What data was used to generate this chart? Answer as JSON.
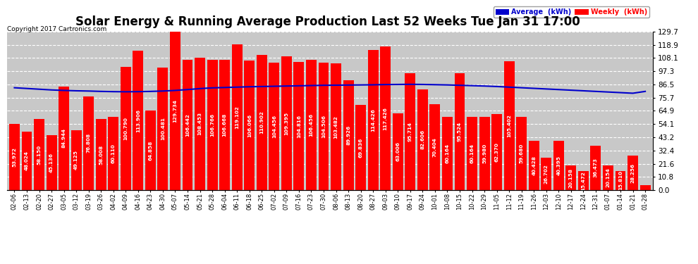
{
  "title": "Solar Energy & Running Average Production Last 52 Weeks Tue Jan 31 17:00",
  "copyright": "Copyright 2017 Cartronics.com",
  "bar_color": "#ff0000",
  "avg_line_color": "#0000cc",
  "background_color": "#ffffff",
  "plot_background": "#c8c8c8",
  "grid_color": "#ffffff",
  "legend_avg_bg": "#0000cc",
  "legend_weekly_bg": "#ff0000",
  "yticks": [
    0.0,
    10.8,
    21.6,
    32.4,
    43.2,
    54.1,
    64.9,
    75.7,
    86.5,
    97.3,
    108.1,
    118.9,
    129.7
  ],
  "xlabels": [
    "02-06",
    "02-13",
    "02-20",
    "02-27",
    "03-05",
    "03-12",
    "03-19",
    "03-26",
    "04-02",
    "04-09",
    "04-16",
    "04-23",
    "04-30",
    "05-07",
    "05-14",
    "05-21",
    "05-28",
    "06-04",
    "06-11",
    "06-18",
    "06-25",
    "07-02",
    "07-09",
    "07-16",
    "07-23",
    "07-30",
    "08-06",
    "08-13",
    "08-20",
    "08-27",
    "09-03",
    "09-10",
    "09-17",
    "09-24",
    "10-01",
    "10-08",
    "10-15",
    "10-22",
    "10-29",
    "11-05",
    "11-12",
    "11-19",
    "11-26",
    "12-03",
    "12-10",
    "12-17",
    "12-24",
    "12-31",
    "01-07",
    "01-14",
    "01-21",
    "01-28"
  ],
  "weekly_values": [
    53.972,
    48.024,
    58.15,
    45.136,
    84.944,
    49.125,
    76.808,
    58.008,
    60.11,
    100.79,
    113.906,
    64.858,
    100.481,
    129.734,
    106.442,
    108.453,
    106.766,
    106.668,
    119.102,
    106.066,
    110.902,
    104.456,
    109.395,
    104.816,
    106.456,
    104.506,
    103.482,
    89.926,
    69.836,
    114.426,
    117.426,
    63.006,
    95.714,
    82.606,
    70.404,
    60.164,
    95.524,
    60.164,
    59.98,
    62.37,
    105.402,
    59.68,
    40.428,
    26.702,
    40.395,
    20.158,
    15.472,
    36.473,
    20.154,
    15.81,
    28.256,
    4.312
  ],
  "avg_values": [
    83.8,
    83.2,
    82.6,
    82.0,
    81.6,
    81.3,
    81.1,
    80.8,
    80.6,
    80.5,
    80.6,
    80.8,
    81.1,
    81.6,
    82.3,
    83.1,
    83.7,
    84.0,
    84.3,
    84.6,
    84.8,
    85.0,
    85.2,
    85.4,
    85.6,
    85.8,
    85.9,
    86.0,
    86.1,
    86.2,
    86.4,
    86.5,
    86.6,
    86.5,
    86.3,
    86.1,
    85.8,
    85.5,
    85.2,
    84.8,
    84.3,
    83.8,
    83.3,
    82.8,
    82.3,
    81.8,
    81.3,
    80.8,
    80.3,
    79.8,
    79.3,
    80.8
  ],
  "ylim": [
    0.0,
    129.7
  ],
  "bar_text_color": "#ffffff",
  "bar_text_fontsize": 5.2,
  "xlabel_fontsize": 6.0,
  "title_fontsize": 12,
  "figwidth": 9.9,
  "figheight": 3.75,
  "dpi": 100
}
